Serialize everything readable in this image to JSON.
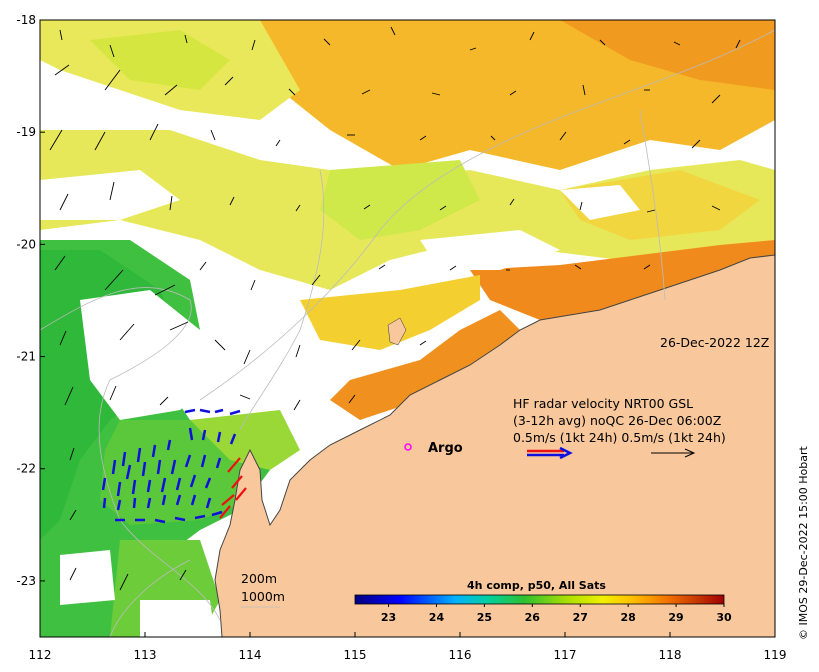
{
  "map": {
    "x_axis": {
      "min": 112,
      "max": 119,
      "ticks": [
        "112",
        "113",
        "114",
        "115",
        "116",
        "117",
        "118",
        "119"
      ]
    },
    "y_axis": {
      "min": -23.5,
      "max": -18,
      "ticks": [
        "-18",
        "-19",
        "-20",
        "-21",
        "-22",
        "-23"
      ]
    },
    "timestamp": "26-Dec-2022 12Z",
    "legend": {
      "line1": "HF radar velocity  NRT00 GSL",
      "line2": "(3-12h avg) noQC 26-Dec 06:00Z",
      "line3": "0.5m/s (1kt 24h)  0.5m/s (1kt 24h)"
    },
    "argo_label": "Argo",
    "argo_color": "#ff00ff",
    "isobaths": [
      "200m",
      "1000m"
    ],
    "colorbar": {
      "title": "4h comp, p50, All Sats",
      "min": 22.3,
      "max": 30,
      "ticks": [
        "23",
        "24",
        "25",
        "26",
        "27",
        "28",
        "29",
        "30"
      ]
    },
    "credit": "© IMOS 29-Dec-2022 15:00 Hobart",
    "colors": {
      "land": "#f8c89c",
      "radar_blue": "#1010dd",
      "radar_red": "#ee1111"
    }
  }
}
